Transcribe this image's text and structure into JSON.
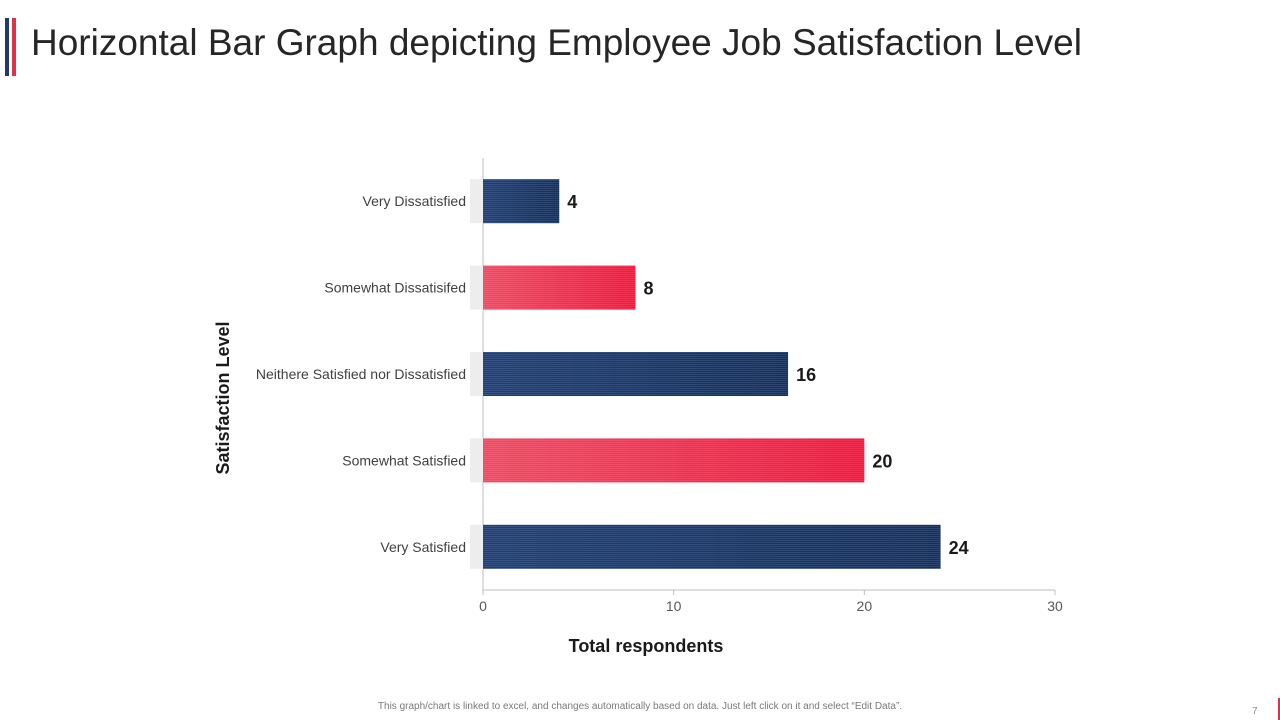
{
  "slide": {
    "title": "Horizontal Bar Graph depicting Employee Job Satisfaction Level",
    "footer_note": "This graph/chart is linked to excel,  and changes automatically based on data. Just left click on it and select “Edit Data”.",
    "page_number": "7",
    "accent_colors": [
      "#1f3a6b",
      "#e0314b"
    ]
  },
  "chart_data": {
    "type": "bar",
    "orientation": "horizontal",
    "title": "",
    "xlabel": "Total respondents",
    "ylabel": "Satisfaction Level",
    "xlim": [
      0,
      30
    ],
    "xticks": [
      0,
      10,
      20,
      30
    ],
    "categories": [
      "Very Dissatisfied",
      "Somewhat Dissatisifed",
      "Neithere Satisfied nor Dissatisfied",
      "Somewhat Satisfied",
      "Very Satisfied"
    ],
    "values": [
      4,
      8,
      16,
      20,
      24
    ],
    "bar_colors": [
      "#1f3a6b",
      "#e0314b",
      "#1f3a6b",
      "#e0314b",
      "#1f3a6b"
    ],
    "data_labels": [
      "4",
      "8",
      "16",
      "20",
      "24"
    ],
    "grid": false,
    "legend": "none"
  }
}
